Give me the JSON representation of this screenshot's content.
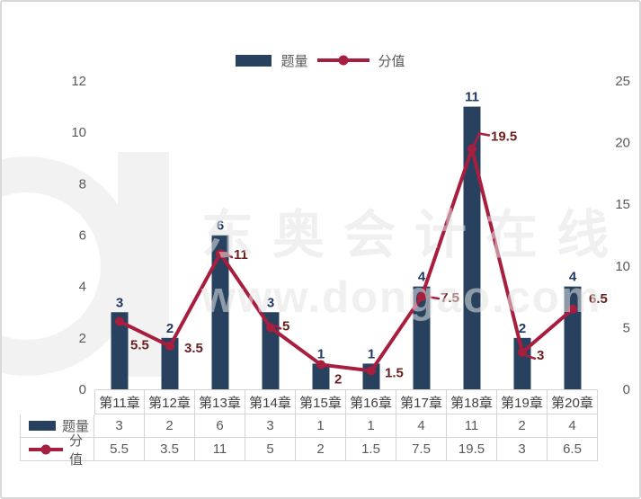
{
  "watermark": {
    "brand": "东奥会计在线",
    "url": "www.dongao.com"
  },
  "colors": {
    "bar": "#27415e",
    "line": "#a81e3e",
    "bar_label": "#1f3864",
    "line_label": "#6b2120",
    "axis_text": "#595959",
    "table_border": "#d4d4d4",
    "watermark": "rgba(228,228,228,0.55)",
    "logo": "#f2f2f2"
  },
  "chart_data": {
    "type": "bar+line",
    "categories": [
      "第11章",
      "第12章",
      "第13章",
      "第14章",
      "第15章",
      "第16章",
      "第17章",
      "第18章",
      "第19章",
      "第20章"
    ],
    "series": [
      {
        "name": "题量",
        "type": "bar",
        "axis": "left",
        "values": [
          3,
          2,
          6,
          3,
          1,
          1,
          4,
          11,
          2,
          4
        ]
      },
      {
        "name": "分值",
        "type": "line",
        "axis": "right",
        "values": [
          5.5,
          3.5,
          11,
          5,
          2,
          1.5,
          7.5,
          19.5,
          3,
          6.5
        ]
      }
    ],
    "left_axis": {
      "min": 0,
      "max": 12,
      "ticks": [
        0,
        2,
        4,
        6,
        8,
        10,
        12
      ]
    },
    "right_axis": {
      "min": 0,
      "max": 25,
      "ticks": [
        0,
        5,
        10,
        15,
        20,
        25
      ]
    },
    "grid": false,
    "legend_position": "top-center",
    "data_labels": true
  }
}
